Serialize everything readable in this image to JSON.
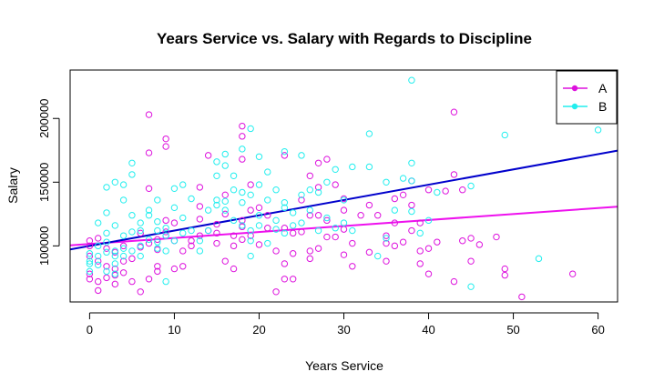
{
  "chart_data": {
    "type": "scatter",
    "title": "Years Service vs. Salary with Regards to Discipline",
    "xlabel": "Years Service",
    "ylabel": "Salary",
    "xlim": [
      -2.3,
      62.3
    ],
    "ylim": [
      56000,
      238000
    ],
    "xticks": [
      0,
      10,
      20,
      30,
      40,
      50,
      60
    ],
    "yticks": [
      100000,
      150000,
      200000
    ],
    "legend_position": "top-right",
    "series": [
      {
        "name": "A",
        "color": "#dd11dd",
        "points": [
          [
            0,
            78000
          ],
          [
            0,
            74000
          ],
          [
            0,
            92000
          ],
          [
            0,
            100000
          ],
          [
            0,
            104000
          ],
          [
            1,
            88000
          ],
          [
            1,
            72000
          ],
          [
            1,
            65000
          ],
          [
            1,
            106000
          ],
          [
            2,
            75000
          ],
          [
            2,
            84000
          ],
          [
            2,
            98000
          ],
          [
            3,
            70000
          ],
          [
            3,
            77000
          ],
          [
            3,
            82000
          ],
          [
            3,
            95000
          ],
          [
            4,
            88000
          ],
          [
            4,
            79000
          ],
          [
            4,
            100000
          ],
          [
            5,
            72000
          ],
          [
            5,
            90000
          ],
          [
            6,
            99000
          ],
          [
            6,
            64000
          ],
          [
            6,
            110000
          ],
          [
            7,
            74000
          ],
          [
            7,
            102000
          ],
          [
            7,
            145000
          ],
          [
            7,
            173000
          ],
          [
            7,
            203000
          ],
          [
            8,
            80000
          ],
          [
            8,
            84000
          ],
          [
            8,
            97000
          ],
          [
            8,
            105000
          ],
          [
            9,
            178000
          ],
          [
            9,
            184000
          ],
          [
            9,
            120000
          ],
          [
            9,
            111000
          ],
          [
            9,
            108000
          ],
          [
            10,
            82000
          ],
          [
            10,
            118000
          ],
          [
            10,
            104000
          ],
          [
            11,
            96000
          ],
          [
            11,
            84000
          ],
          [
            12,
            104000
          ],
          [
            12,
            100000
          ],
          [
            13,
            108000
          ],
          [
            13,
            121000
          ],
          [
            13,
            131000
          ],
          [
            13,
            146000
          ],
          [
            14,
            112000
          ],
          [
            14,
            171000
          ],
          [
            15,
            102000
          ],
          [
            15,
            110000
          ],
          [
            15,
            117000
          ],
          [
            16,
            88000
          ],
          [
            16,
            125000
          ],
          [
            16,
            140000
          ],
          [
            17,
            108000
          ],
          [
            17,
            82000
          ],
          [
            17,
            100000
          ],
          [
            18,
            105000
          ],
          [
            18,
            115000
          ],
          [
            18,
            120000
          ],
          [
            18,
            168000
          ],
          [
            18,
            186000
          ],
          [
            18,
            194000
          ],
          [
            19,
            108000
          ],
          [
            19,
            128000
          ],
          [
            19,
            148000
          ],
          [
            20,
            130000
          ],
          [
            20,
            101000
          ],
          [
            21,
            114000
          ],
          [
            21,
            124000
          ],
          [
            22,
            96000
          ],
          [
            22,
            64000
          ],
          [
            23,
            114000
          ],
          [
            23,
            74000
          ],
          [
            23,
            171000
          ],
          [
            23,
            86000
          ],
          [
            24,
            74000
          ],
          [
            24,
            94000
          ],
          [
            24,
            110000
          ],
          [
            25,
            136000
          ],
          [
            25,
            111000
          ],
          [
            26,
            96000
          ],
          [
            26,
            124000
          ],
          [
            26,
            155000
          ],
          [
            26,
            90000
          ],
          [
            27,
            165000
          ],
          [
            27,
            146000
          ],
          [
            27,
            124000
          ],
          [
            27,
            98000
          ],
          [
            28,
            168000
          ],
          [
            28,
            120000
          ],
          [
            28,
            107000
          ],
          [
            29,
            148000
          ],
          [
            29,
            107000
          ],
          [
            30,
            93000
          ],
          [
            30,
            113000
          ],
          [
            30,
            137000
          ],
          [
            30,
            128000
          ],
          [
            31,
            84000
          ],
          [
            31,
            102000
          ],
          [
            32,
            124000
          ],
          [
            33,
            132000
          ],
          [
            33,
            95000
          ],
          [
            34,
            124000
          ],
          [
            35,
            88000
          ],
          [
            35,
            102000
          ],
          [
            35,
            108000
          ],
          [
            36,
            100000
          ],
          [
            36,
            137000
          ],
          [
            36,
            118000
          ],
          [
            37,
            103000
          ],
          [
            37,
            140000
          ],
          [
            38,
            132000
          ],
          [
            38,
            112000
          ],
          [
            38,
            151000
          ],
          [
            39,
            118000
          ],
          [
            39,
            96000
          ],
          [
            39,
            86000
          ],
          [
            40,
            98000
          ],
          [
            40,
            78000
          ],
          [
            40,
            144000
          ],
          [
            41,
            103000
          ],
          [
            42,
            143000
          ],
          [
            43,
            156000
          ],
          [
            43,
            72000
          ],
          [
            43,
            205000
          ],
          [
            44,
            104000
          ],
          [
            44,
            144000
          ],
          [
            45,
            106000
          ],
          [
            45,
            88000
          ],
          [
            46,
            101000
          ],
          [
            48,
            107000
          ],
          [
            49,
            82000
          ],
          [
            49,
            77000
          ],
          [
            51,
            60000
          ],
          [
            57,
            78000
          ]
        ]
      },
      {
        "name": "B",
        "color": "#22eeee",
        "points": [
          [
            0,
            94000
          ],
          [
            0,
            86000
          ],
          [
            0,
            80000
          ],
          [
            0,
            88000
          ],
          [
            1,
            85000
          ],
          [
            1,
            92000
          ],
          [
            1,
            118000
          ],
          [
            1,
            100000
          ],
          [
            2,
            80000
          ],
          [
            2,
            95000
          ],
          [
            2,
            103000
          ],
          [
            2,
            110000
          ],
          [
            2,
            126000
          ],
          [
            2,
            146000
          ],
          [
            3,
            150000
          ],
          [
            3,
            116000
          ],
          [
            3,
            96000
          ],
          [
            3,
            92000
          ],
          [
            3,
            86000
          ],
          [
            3,
            78000
          ],
          [
            4,
            92000
          ],
          [
            4,
            98000
          ],
          [
            4,
            108000
          ],
          [
            4,
            136000
          ],
          [
            4,
            148000
          ],
          [
            5,
            156000
          ],
          [
            5,
            165000
          ],
          [
            5,
            124000
          ],
          [
            5,
            111000
          ],
          [
            5,
            96000
          ],
          [
            6,
            92000
          ],
          [
            6,
            100000
          ],
          [
            6,
            112000
          ],
          [
            6,
            118000
          ],
          [
            7,
            105000
          ],
          [
            7,
            124000
          ],
          [
            7,
            128000
          ],
          [
            8,
            98000
          ],
          [
            8,
            103000
          ],
          [
            8,
            112000
          ],
          [
            8,
            119000
          ],
          [
            8,
            136000
          ],
          [
            9,
            72000
          ],
          [
            9,
            96000
          ],
          [
            9,
            108000
          ],
          [
            9,
            114000
          ],
          [
            10,
            130000
          ],
          [
            10,
            145000
          ],
          [
            10,
            104000
          ],
          [
            11,
            122000
          ],
          [
            11,
            110000
          ],
          [
            11,
            148000
          ],
          [
            12,
            137000
          ],
          [
            12,
            112000
          ],
          [
            13,
            104000
          ],
          [
            13,
            96000
          ],
          [
            14,
            128000
          ],
          [
            14,
            112000
          ],
          [
            15,
            132000
          ],
          [
            15,
            136000
          ],
          [
            15,
            155000
          ],
          [
            15,
            166000
          ],
          [
            16,
            135000
          ],
          [
            16,
            163000
          ],
          [
            16,
            172000
          ],
          [
            16,
            128000
          ],
          [
            17,
            120000
          ],
          [
            17,
            144000
          ],
          [
            17,
            155000
          ],
          [
            18,
            134000
          ],
          [
            18,
            142000
          ],
          [
            18,
            176000
          ],
          [
            18,
            116000
          ],
          [
            19,
            92000
          ],
          [
            19,
            104000
          ],
          [
            19,
            112000
          ],
          [
            19,
            140000
          ],
          [
            19,
            192000
          ],
          [
            20,
            170000
          ],
          [
            20,
            148000
          ],
          [
            20,
            124000
          ],
          [
            20,
            116000
          ],
          [
            21,
            136000
          ],
          [
            21,
            102000
          ],
          [
            21,
            158000
          ],
          [
            22,
            144000
          ],
          [
            22,
            113000
          ],
          [
            22,
            120000
          ],
          [
            23,
            110000
          ],
          [
            23,
            134000
          ],
          [
            23,
            174000
          ],
          [
            23,
            130000
          ],
          [
            24,
            126000
          ],
          [
            24,
            116000
          ],
          [
            25,
            118000
          ],
          [
            25,
            140000
          ],
          [
            25,
            171000
          ],
          [
            26,
            144000
          ],
          [
            26,
            128000
          ],
          [
            27,
            112000
          ],
          [
            27,
            142000
          ],
          [
            28,
            122000
          ],
          [
            28,
            150000
          ],
          [
            29,
            160000
          ],
          [
            29,
            114000
          ],
          [
            30,
            136000
          ],
          [
            30,
            118000
          ],
          [
            31,
            162000
          ],
          [
            31,
            112000
          ],
          [
            33,
            162000
          ],
          [
            33,
            188000
          ],
          [
            34,
            92000
          ],
          [
            35,
            106000
          ],
          [
            35,
            150000
          ],
          [
            36,
            128000
          ],
          [
            37,
            153000
          ],
          [
            38,
            230000
          ],
          [
            38,
            151000
          ],
          [
            38,
            127000
          ],
          [
            38,
            165000
          ],
          [
            39,
            110000
          ],
          [
            40,
            120000
          ],
          [
            41,
            142000
          ],
          [
            45,
            147000
          ],
          [
            45,
            68000
          ],
          [
            49,
            187000
          ],
          [
            53,
            90000
          ],
          [
            60,
            191000
          ]
        ]
      }
    ],
    "fit_lines": [
      {
        "series": "A",
        "color": "#ee11ee",
        "intercept": 101500,
        "slope": 470
      },
      {
        "series": "B",
        "color": "#0000cc",
        "intercept": 100000,
        "slope": 1200
      }
    ]
  }
}
